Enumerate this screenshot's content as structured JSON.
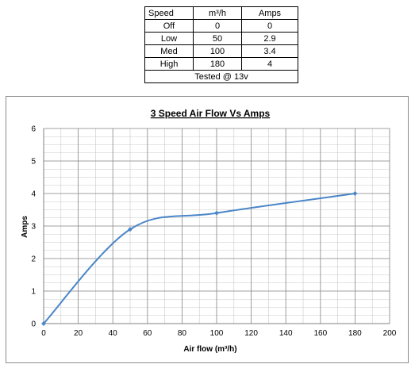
{
  "table": {
    "headers": [
      "Speed",
      "m³/h",
      "Amps"
    ],
    "rows": [
      [
        "Off",
        "0",
        "0"
      ],
      [
        "Low",
        "50",
        "2.9"
      ],
      [
        "Med",
        "100",
        "3.4"
      ],
      [
        "High",
        "180",
        "4"
      ]
    ],
    "footer": "Tested @ 13v"
  },
  "chart_data": {
    "type": "line",
    "title": "3 Speed Air Flow Vs Amps",
    "xlabel": "Air flow (m³/h)",
    "ylabel": "Amps",
    "xlim": [
      0,
      200
    ],
    "ylim": [
      0,
      6
    ],
    "x_ticks": [
      0,
      20,
      40,
      60,
      80,
      100,
      120,
      140,
      160,
      180,
      200
    ],
    "y_ticks": [
      0,
      1,
      2,
      3,
      4,
      5,
      6
    ],
    "x_minor_step": 10,
    "y_minor_step": 0.25,
    "grid": true,
    "legend": "none",
    "smooth": true,
    "line_color": "#4a86c8",
    "series": [
      {
        "x": [
          0,
          50,
          100,
          180
        ],
        "y": [
          0,
          2.9,
          3.4,
          4
        ]
      }
    ]
  }
}
